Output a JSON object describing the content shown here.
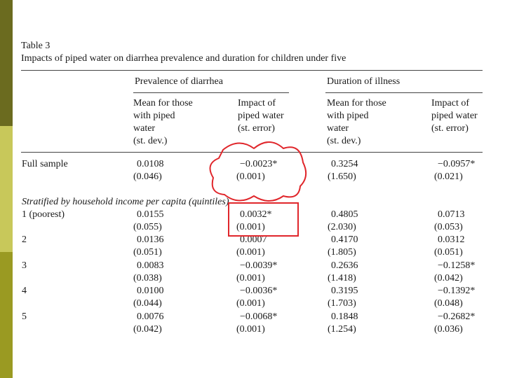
{
  "table": {
    "caption_number": "Table 3",
    "caption_title": "Impacts of piped water on diarrhea prevalence and duration for children under five",
    "group_headers": [
      "Prevalence of diarrhea",
      "Duration of illness"
    ],
    "col_headers": [
      "Mean for those\nwith piped\nwater\n(st. dev.)",
      "Impact of\npiped water\n(st. error)",
      "Mean for those\nwith piped\nwater\n(st. dev.)",
      "Impact of\npiped water\n(st. error)"
    ],
    "full_sample": {
      "label": "Full sample",
      "values": [
        "0.0108",
        "−0.0023*",
        "0.3254",
        "−0.0957*"
      ],
      "errors": [
        "(0.046)",
        "(0.001)",
        "(1.650)",
        "(0.021)"
      ]
    },
    "stratified_label": "Stratified by household income per capita (quintiles)",
    "rows": [
      {
        "label": "1 (poorest)",
        "values": [
          "0.0155",
          "0.0032*",
          "0.4805",
          "0.0713"
        ],
        "errors": [
          "(0.055)",
          "(0.001)",
          "(2.030)",
          "(0.053)"
        ]
      },
      {
        "label": "2",
        "values": [
          "0.0136",
          "0.0007",
          "0.4170",
          "0.0312"
        ],
        "errors": [
          "(0.051)",
          "(0.001)",
          "(1.805)",
          "(0.051)"
        ]
      },
      {
        "label": "3",
        "values": [
          "0.0083",
          "−0.0039*",
          "0.2636",
          "−0.1258*"
        ],
        "errors": [
          "(0.038)",
          "(0.001)",
          "(1.418)",
          "(0.042)"
        ]
      },
      {
        "label": "4",
        "values": [
          "0.0100",
          "−0.0036*",
          "0.3195",
          "−0.1392*"
        ],
        "errors": [
          "(0.044)",
          "(0.001)",
          "(1.703)",
          "(0.048)"
        ]
      },
      {
        "label": "5",
        "values": [
          "0.0076",
          "−0.0068*",
          "0.1848",
          "−0.2682*"
        ],
        "errors": [
          "(0.042)",
          "(0.001)",
          "(1.254)",
          "(0.036)"
        ]
      }
    ]
  },
  "annotation_colors": {
    "cloud": "#e0262b",
    "box": "#e0262b"
  },
  "stripe_colors": [
    "#6b6b1f",
    "#c8c85a",
    "#9a9a22"
  ]
}
